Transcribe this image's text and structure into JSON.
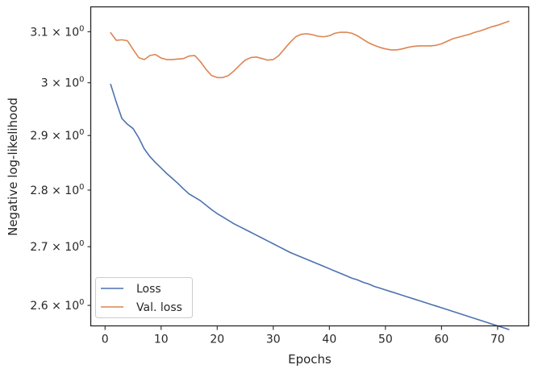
{
  "chart_data": {
    "type": "line",
    "title": "",
    "xlabel": "Epochs",
    "ylabel": "Negative log-likelihood",
    "xlim": [
      -2.55,
      75.55
    ],
    "ylim": [
      2.566,
      3.15
    ],
    "y_scale": "log",
    "grid": false,
    "legend": "lower-left",
    "x_ticks": [
      0,
      10,
      20,
      30,
      40,
      50,
      60,
      70
    ],
    "x_tick_labels": [
      "0",
      "10",
      "20",
      "30",
      "40",
      "50",
      "60",
      "70"
    ],
    "y_ticks": [
      2.6,
      2.7,
      2.8,
      2.9,
      3.0,
      3.1
    ],
    "y_tick_labels": [
      {
        "base": "2.6",
        "sup": "0",
        "text": "2.6 × 10⁰"
      },
      {
        "base": "2.7",
        "sup": "0",
        "text": "2.7 × 10⁰"
      },
      {
        "base": "2.8",
        "sup": "0",
        "text": "2.8 × 10⁰"
      },
      {
        "base": "2.9",
        "sup": "0",
        "text": "2.9 × 10⁰"
      },
      {
        "base": "3",
        "sup": "0",
        "text": "3 × 10⁰"
      },
      {
        "base": "3.1",
        "sup": "0",
        "text": "3.1 × 10⁰"
      }
    ],
    "series": [
      {
        "name": "Loss",
        "color": "#4c72b0",
        "x": [
          1,
          2,
          3,
          4,
          5,
          6,
          7,
          8,
          9,
          10,
          11,
          12,
          13,
          14,
          15,
          16,
          17,
          18,
          19,
          20,
          21,
          22,
          23,
          24,
          25,
          26,
          27,
          28,
          29,
          30,
          31,
          32,
          33,
          34,
          35,
          36,
          37,
          38,
          39,
          40,
          41,
          42,
          43,
          44,
          45,
          46,
          47,
          48,
          49,
          50,
          51,
          52,
          53,
          54,
          55,
          56,
          57,
          58,
          59,
          60,
          61,
          62,
          63,
          64,
          65,
          66,
          67,
          68,
          69,
          70,
          71,
          72
        ],
        "values": [
          2.997,
          2.963,
          2.932,
          2.921,
          2.913,
          2.896,
          2.875,
          2.861,
          2.85,
          2.84,
          2.83,
          2.821,
          2.812,
          2.802,
          2.793,
          2.787,
          2.781,
          2.773,
          2.765,
          2.758,
          2.752,
          2.746,
          2.74,
          2.735,
          2.73,
          2.725,
          2.72,
          2.715,
          2.71,
          2.705,
          2.7,
          2.695,
          2.69,
          2.686,
          2.682,
          2.678,
          2.674,
          2.67,
          2.666,
          2.662,
          2.658,
          2.654,
          2.65,
          2.646,
          2.643,
          2.639,
          2.636,
          2.632,
          2.629,
          2.626,
          2.623,
          2.62,
          2.617,
          2.614,
          2.611,
          2.608,
          2.605,
          2.602,
          2.599,
          2.596,
          2.593,
          2.59,
          2.587,
          2.584,
          2.581,
          2.578,
          2.575,
          2.572,
          2.569,
          2.566,
          2.563,
          2.56
        ]
      },
      {
        "name": "Val. loss",
        "color": "#dd8452",
        "x": [
          1,
          2,
          3,
          4,
          5,
          6,
          7,
          8,
          9,
          10,
          11,
          12,
          13,
          14,
          15,
          16,
          17,
          18,
          19,
          20,
          21,
          22,
          23,
          24,
          25,
          26,
          27,
          28,
          29,
          30,
          31,
          32,
          33,
          34,
          35,
          36,
          37,
          38,
          39,
          40,
          41,
          42,
          43,
          44,
          45,
          46,
          47,
          48,
          49,
          50,
          51,
          52,
          53,
          54,
          55,
          56,
          57,
          58,
          59,
          60,
          61,
          62,
          63,
          64,
          65,
          66,
          67,
          68,
          69,
          70,
          71,
          72
        ],
        "values": [
          3.098,
          3.083,
          3.084,
          3.082,
          3.065,
          3.049,
          3.045,
          3.053,
          3.055,
          3.048,
          3.045,
          3.045,
          3.046,
          3.047,
          3.052,
          3.053,
          3.041,
          3.026,
          3.014,
          3.01,
          3.01,
          3.014,
          3.023,
          3.034,
          3.044,
          3.049,
          3.05,
          3.047,
          3.044,
          3.045,
          3.053,
          3.066,
          3.079,
          3.09,
          3.095,
          3.096,
          3.094,
          3.091,
          3.09,
          3.092,
          3.097,
          3.099,
          3.099,
          3.097,
          3.092,
          3.085,
          3.078,
          3.073,
          3.069,
          3.066,
          3.064,
          3.064,
          3.066,
          3.069,
          3.071,
          3.072,
          3.072,
          3.072,
          3.073,
          3.076,
          3.081,
          3.086,
          3.089,
          3.092,
          3.095,
          3.099,
          3.102,
          3.106,
          3.11,
          3.113,
          3.117,
          3.121
        ]
      }
    ]
  }
}
